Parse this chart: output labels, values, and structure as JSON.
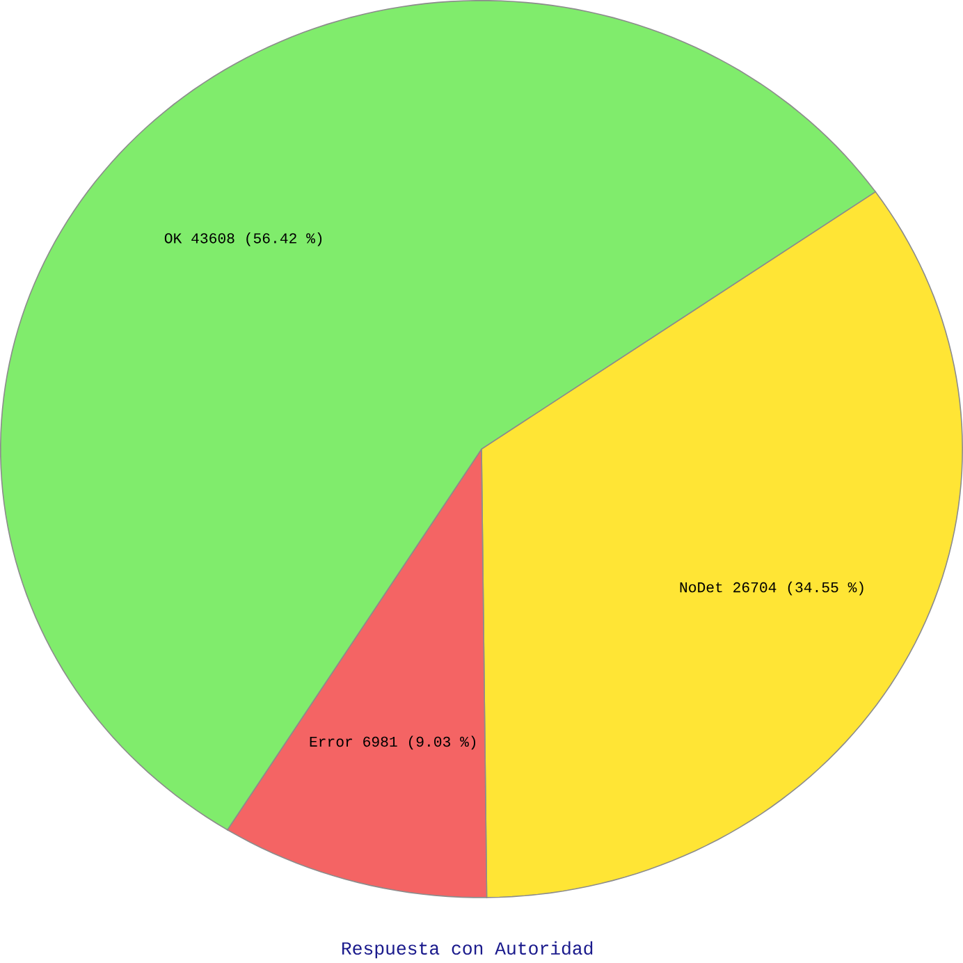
{
  "chart_data": {
    "type": "pie",
    "title": "Respuesta con Autoridad",
    "categories": [
      "NoDet",
      "Error",
      "OK"
    ],
    "values": [
      26704,
      6981,
      43608
    ],
    "value_labels": [
      "26704 (34.55 %)",
      "6981 (9.03 %)",
      "43608 (56.42 %)"
    ],
    "colors": [
      "#ffe535",
      "#f46464",
      "#80ec6c"
    ]
  }
}
